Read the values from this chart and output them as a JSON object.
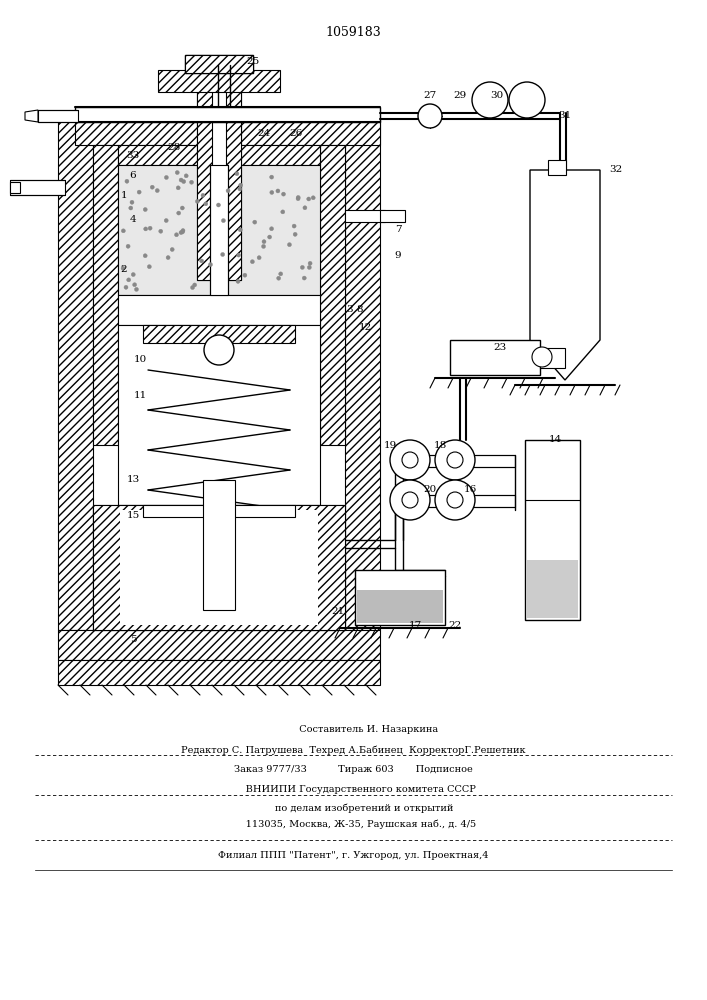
{
  "patent_number": "1059183",
  "background_color": "#ffffff",
  "line_color": "#000000",
  "hatch_color": "#000000",
  "fig_width": 7.07,
  "fig_height": 10.0,
  "dpi": 100,
  "footer_lines": [
    "          Составитель И. Назаркина",
    "Редактор С. Патрушева  Техред А.Бабинец  КорректорГ.Решетник",
    "Заказ 9777/33          Тираж 603       Подписное",
    "     ВНИИПИ Государственного комитета СССР",
    "       по делам изобретений и открытий",
    "     113035, Москва, Ж-35, Раушская наб., д. 4/5",
    "Филиал ППП \"Патент\", г. Ужгород, ул. Проектная,4"
  ]
}
